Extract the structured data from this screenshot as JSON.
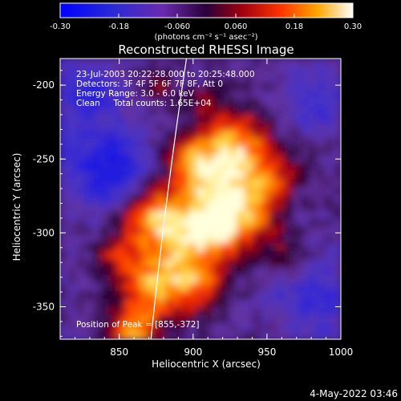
{
  "colorbar": {
    "ticks": [
      "-0.30",
      "-0.18",
      "-0.060",
      "0.060",
      "0.18",
      "0.30"
    ],
    "min": -0.3,
    "max": 0.3,
    "unit_label": "(photons cm⁻² s⁻¹ asec⁻²)"
  },
  "title": "Reconstructed RHESSI Image",
  "info": {
    "line1": "23-Jul-2003 20:22:28.000 to 20:25:48.000",
    "line2": "Detectors: 3F 4F 5F 6F 7F 8F, Att 0",
    "line3": "Energy Range: 3.0 - 6.0 keV",
    "line4": "Clean     Total counts: 1.65E+04",
    "peak": "Position of Peak = [855,-372]"
  },
  "x_axis": {
    "label": "Heliocentric X (arcsec)",
    "ticks": [
      "850",
      "900",
      "950",
      "1000"
    ],
    "range": [
      810,
      1000
    ]
  },
  "y_axis": {
    "label": "Heliocentric Y (arcsec)",
    "ticks": [
      "-200",
      "-250",
      "-300",
      "-350"
    ],
    "range": [
      -372,
      -182
    ]
  },
  "footer": {
    "date": "4-May-2022 03:46"
  },
  "colors": {
    "limb": "#ffffff",
    "background": "#000000"
  }
}
